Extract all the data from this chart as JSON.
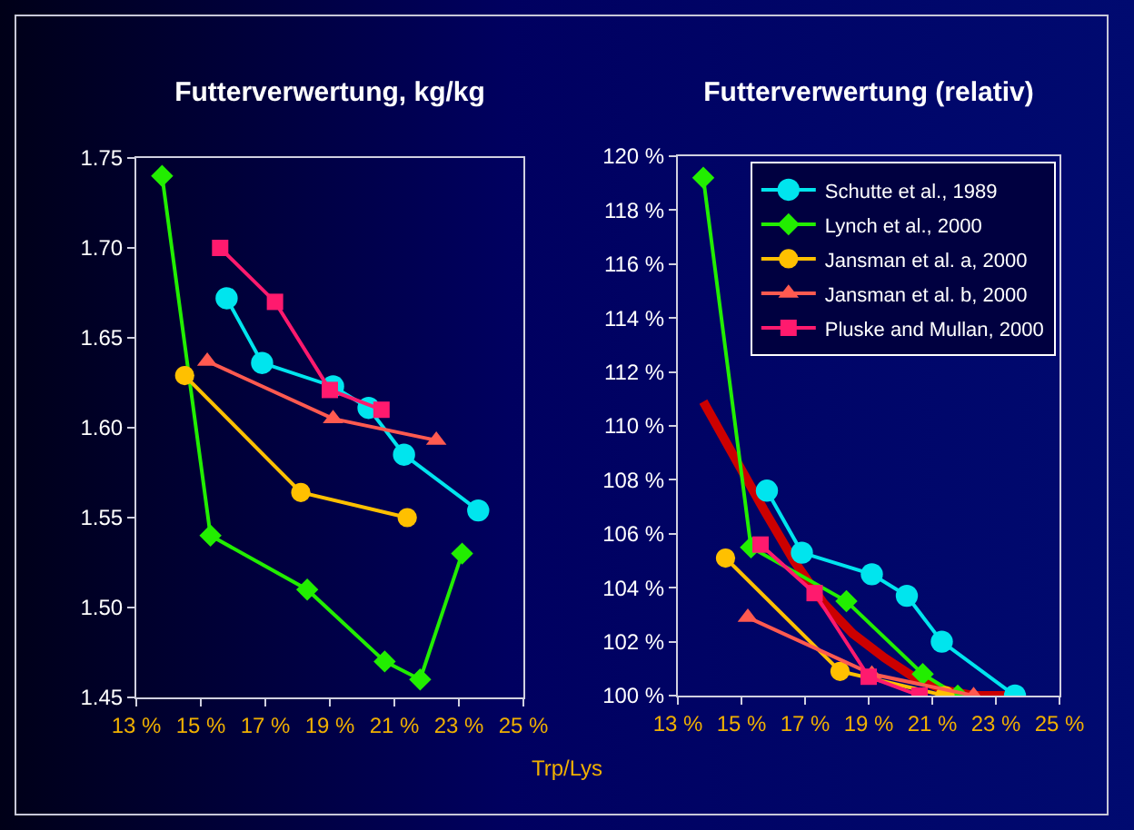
{
  "chart_data": [
    {
      "type": "line",
      "title": "Futterverwertung, kg/kg",
      "xlim": [
        13,
        25
      ],
      "ylim": [
        1.45,
        1.75
      ],
      "xticks": [
        {
          "value": 13,
          "label": "13 %"
        },
        {
          "value": 15,
          "label": "15 %"
        },
        {
          "value": 17,
          "label": "17 %"
        },
        {
          "value": 19,
          "label": "19 %"
        },
        {
          "value": 21,
          "label": "21 %"
        },
        {
          "value": 23,
          "label": "23 %"
        },
        {
          "value": 25,
          "label": "25 %"
        }
      ],
      "yticks": [
        {
          "value": 1.45,
          "label": "1.45"
        },
        {
          "value": 1.5,
          "label": "1.50"
        },
        {
          "value": 1.55,
          "label": "1.55"
        },
        {
          "value": 1.6,
          "label": "1.60"
        },
        {
          "value": 1.65,
          "label": "1.65"
        },
        {
          "value": 1.7,
          "label": "1.70"
        },
        {
          "value": 1.75,
          "label": "1.75"
        }
      ],
      "grid": false,
      "legend": false,
      "series": [
        {
          "color": "#00e5ee",
          "marker": "circle",
          "x": [
            15.8,
            16.9,
            19.1,
            20.2,
            21.3,
            23.6
          ],
          "values": [
            1.672,
            1.636,
            1.623,
            1.611,
            1.585,
            1.554
          ]
        },
        {
          "color": "#22ee00",
          "marker": "diamond",
          "x": [
            13.8,
            15.3,
            18.3,
            20.7,
            21.8,
            23.1
          ],
          "values": [
            1.74,
            1.54,
            1.51,
            1.47,
            1.46,
            1.53
          ]
        },
        {
          "color": "#ffc000",
          "marker": "circle",
          "x": [
            14.5,
            18.1,
            21.4
          ],
          "values": [
            1.629,
            1.564,
            1.55
          ]
        },
        {
          "color": "#ff5a50",
          "marker": "triangle",
          "x": [
            15.2,
            19.1,
            22.3
          ],
          "values": [
            1.637,
            1.605,
            1.593
          ]
        },
        {
          "color": "#ff1a6e",
          "marker": "square",
          "x": [
            15.6,
            17.3,
            19.0,
            20.6
          ],
          "values": [
            1.7,
            1.67,
            1.621,
            1.61
          ]
        }
      ]
    },
    {
      "type": "line",
      "title": "Futterverwertung (relativ)",
      "xlabel": "Trp/Lys",
      "xlim": [
        13,
        25
      ],
      "ylim": [
        100,
        120
      ],
      "xticks": [
        {
          "value": 13,
          "label": "13 %"
        },
        {
          "value": 15,
          "label": "15 %"
        },
        {
          "value": 17,
          "label": "17 %"
        },
        {
          "value": 19,
          "label": "19 %"
        },
        {
          "value": 21,
          "label": "21 %"
        },
        {
          "value": 23,
          "label": "23 %"
        },
        {
          "value": 25,
          "label": "25 %"
        }
      ],
      "yticks": [
        {
          "value": 100,
          "label": "100 %"
        },
        {
          "value": 102,
          "label": "102 %"
        },
        {
          "value": 104,
          "label": "104 %"
        },
        {
          "value": 106,
          "label": "106 %"
        },
        {
          "value": 108,
          "label": "108 %"
        },
        {
          "value": 110,
          "label": "110 %"
        },
        {
          "value": 112,
          "label": "112 %"
        },
        {
          "value": 114,
          "label": "114 %"
        },
        {
          "value": 116,
          "label": "116 %"
        },
        {
          "value": 118,
          "label": "118 %"
        },
        {
          "value": 120,
          "label": "120 %"
        }
      ],
      "grid": false,
      "legend": "top right",
      "series": [
        {
          "color": "#cc0000",
          "marker": "none",
          "x": [
            13.8,
            14.75,
            15.7,
            16.65,
            17.6,
            18.5,
            19.5,
            20.4,
            21.4,
            22.3,
            23.3
          ],
          "values": [
            110.9,
            108.9,
            106.9,
            105.0,
            103.4,
            102.3,
            101.4,
            100.7,
            100.2,
            100.0,
            100.0
          ]
        },
        {
          "name": "Schutte et al., 1989",
          "color": "#00e5ee",
          "marker": "circle",
          "x": [
            15.8,
            16.9,
            19.1,
            20.2,
            21.3,
            23.6
          ],
          "values": [
            107.6,
            105.3,
            104.5,
            103.7,
            102.0,
            100.0
          ]
        },
        {
          "name": "Lynch et al., 2000",
          "color": "#22ee00",
          "marker": "diamond",
          "x": [
            13.8,
            15.3,
            18.3,
            20.7,
            21.8
          ],
          "values": [
            119.2,
            105.5,
            103.5,
            100.8,
            100.0
          ]
        },
        {
          "name": "Jansman et al. a, 2000",
          "color": "#ffc000",
          "marker": "circle",
          "x": [
            14.5,
            18.1,
            21.4
          ],
          "values": [
            105.1,
            100.9,
            100.0
          ]
        },
        {
          "name": "Jansman et al. b, 2000",
          "color": "#ff5a50",
          "marker": "triangle",
          "x": [
            15.2,
            19.1,
            22.3
          ],
          "values": [
            102.9,
            100.8,
            100.0
          ]
        },
        {
          "name": "Pluske and Mullan, 2000",
          "color": "#ff1a6e",
          "marker": "square",
          "x": [
            15.6,
            17.3,
            19.0,
            20.6
          ],
          "values": [
            105.6,
            103.8,
            100.7,
            100.0
          ]
        }
      ]
    }
  ]
}
